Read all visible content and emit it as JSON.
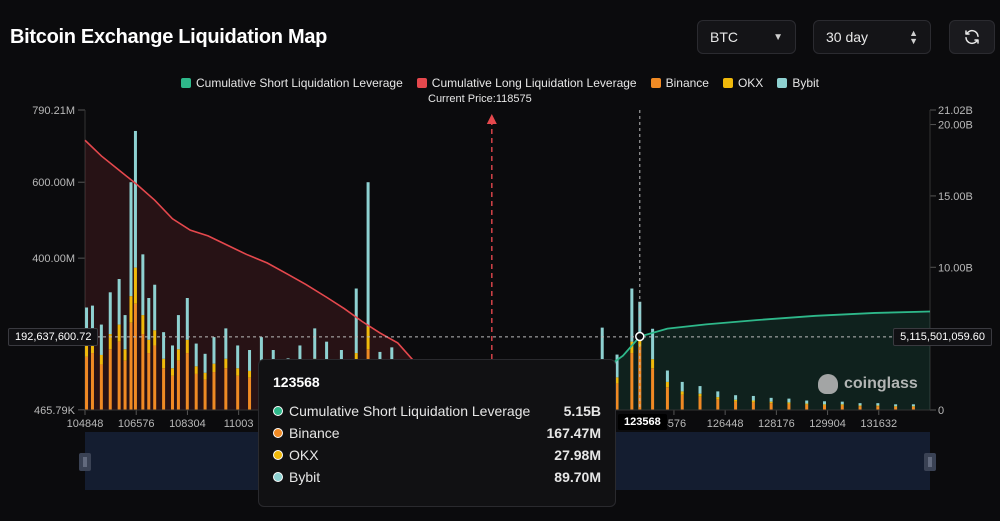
{
  "header": {
    "title": "Bitcoin Exchange Liquidation Map"
  },
  "controls": {
    "coin": "BTC",
    "range": "30 day",
    "refresh_icon": "refresh-icon"
  },
  "colors": {
    "short": "#2eb88a",
    "long": "#e5484d",
    "binance": "#f08a24",
    "okx": "#f0b90b",
    "bybit": "#8ed1d1",
    "price_line": "#e5484d"
  },
  "legend": [
    {
      "label": "Cumulative Short Liquidation Leverage",
      "color": "#2eb88a"
    },
    {
      "label": "Cumulative Long Liquidation Leverage",
      "color": "#e5484d"
    },
    {
      "label": "Binance",
      "color": "#f08a24"
    },
    {
      "label": "OKX",
      "color": "#f0b90b"
    },
    {
      "label": "Bybit",
      "color": "#8ed1d1"
    }
  ],
  "current_price_label": "Current Price:118575",
  "crosshair": {
    "left_value": "192,637,600.72",
    "right_value": "5,115,501,059.60",
    "x_value": "123568"
  },
  "watermark": "coinglass",
  "tooltip": {
    "header": "123568",
    "rows": [
      {
        "label": "Cumulative Short Liquidation Leverage",
        "value": "5.15B",
        "color": "#2eb88a"
      },
      {
        "label": "Binance",
        "value": "167.47M",
        "color": "#f08a24"
      },
      {
        "label": "OKX",
        "value": "27.98M",
        "color": "#f0b90b"
      },
      {
        "label": "Bybit",
        "value": "89.70M",
        "color": "#8ed1d1"
      }
    ]
  },
  "chart_data": {
    "type": "bar",
    "current_price": 118575,
    "x_range": [
      104848,
      133360
    ],
    "x_ticks": [
      "104848",
      "106576",
      "108304",
      "11003",
      "4576",
      "126448",
      "128176",
      "129904",
      "131632"
    ],
    "y_left_ticks": [
      "790.21M",
      "600.00M",
      "400.00M",
      "465.79K"
    ],
    "y_left_range": [
      0,
      790.21
    ],
    "y_right_ticks": [
      "21.02B",
      "20.00B",
      "15.00B",
      "10.00B",
      "0"
    ],
    "y_right_range": [
      0,
      21.02
    ],
    "long_cumulative": [
      [
        104848,
        18.9
      ],
      [
        105400,
        17.8
      ],
      [
        106000,
        16.8
      ],
      [
        106600,
        15.8
      ],
      [
        107200,
        14.7
      ],
      [
        107800,
        13.4
      ],
      [
        108400,
        12.6
      ],
      [
        109000,
        12.2
      ],
      [
        109700,
        11.5
      ],
      [
        110300,
        10.9
      ],
      [
        111000,
        10.3
      ],
      [
        111700,
        9.5
      ],
      [
        112300,
        8.8
      ],
      [
        113000,
        7.9
      ],
      [
        113600,
        7.1
      ],
      [
        114200,
        6.2
      ],
      [
        114800,
        5.4
      ],
      [
        115400,
        4.7
      ],
      [
        116000,
        3.3
      ],
      [
        116700,
        1.9
      ],
      [
        117400,
        1.2
      ],
      [
        118000,
        0.4
      ],
      [
        118575,
        0
      ]
    ],
    "short_cumulative": [
      [
        118575,
        0
      ],
      [
        119400,
        0.3
      ],
      [
        120300,
        0.8
      ],
      [
        121200,
        1.4
      ],
      [
        122200,
        2.6
      ],
      [
        123000,
        3.8
      ],
      [
        123568,
        5.15
      ],
      [
        124500,
        5.7
      ],
      [
        125800,
        6.0
      ],
      [
        127500,
        6.3
      ],
      [
        129500,
        6.6
      ],
      [
        131500,
        6.8
      ],
      [
        133360,
        6.9
      ]
    ],
    "series": [
      {
        "name": "Binance",
        "x": [
          104900,
          105100,
          105400,
          105700,
          106000,
          106200,
          106400,
          106550,
          106800,
          107000,
          107200,
          107500,
          107800,
          108000,
          108300,
          108600,
          108900,
          109200,
          109600,
          110000,
          110400,
          110800,
          111200,
          111700,
          112100,
          112600,
          113000,
          113500,
          114000,
          114400,
          114800,
          115200,
          115600,
          116000,
          116500,
          117000,
          117500,
          118000,
          118800,
          119600,
          120400,
          121200,
          121700,
          122300,
          122800,
          123300,
          123568,
          124000,
          124500,
          125000,
          125600,
          126200,
          126800,
          127400,
          128000,
          128600,
          129200,
          129800,
          130400,
          131000,
          131600,
          132200,
          132800
        ],
        "values": [
          140,
          150,
          120,
          160,
          180,
          130,
          230,
          280,
          200,
          150,
          170,
          110,
          90,
          130,
          150,
          95,
          80,
          100,
          110,
          90,
          85,
          100,
          85,
          70,
          90,
          110,
          95,
          80,
          120,
          160,
          75,
          85,
          60,
          70,
          55,
          65,
          40,
          50,
          55,
          45,
          40,
          30,
          50,
          95,
          70,
          150,
          167.47,
          110,
          60,
          40,
          35,
          28,
          22,
          20,
          18,
          16,
          14,
          12,
          12,
          10,
          10,
          8,
          8
        ]
      },
      {
        "name": "OKX",
        "x": [
          104900,
          105100,
          105400,
          105700,
          106000,
          106200,
          106400,
          106550,
          106800,
          107000,
          107200,
          107500,
          107800,
          108000,
          108300,
          108600,
          108900,
          109200,
          109600,
          110000,
          110400,
          110800,
          111200,
          111700,
          112100,
          112600,
          113000,
          113500,
          114000,
          114400,
          114800,
          115200,
          115600,
          116000,
          116500,
          117000,
          117500,
          118000,
          118800,
          119600,
          120400,
          121200,
          121700,
          122300,
          122800,
          123300,
          123568,
          124000,
          124500,
          125000,
          125600,
          126200,
          126800,
          127400,
          128000,
          128600,
          129200,
          129800,
          130400,
          131000,
          131600,
          132200,
          132800
        ],
        "values": [
          30,
          35,
          25,
          40,
          45,
          30,
          70,
          95,
          50,
          35,
          40,
          25,
          20,
          30,
          35,
          20,
          18,
          22,
          25,
          20,
          18,
          22,
          18,
          16,
          20,
          25,
          20,
          18,
          30,
          60,
          18,
          20,
          14,
          16,
          12,
          14,
          9,
          12,
          12,
          10,
          9,
          7,
          12,
          22,
          16,
          30,
          27.98,
          24,
          14,
          9,
          8,
          6,
          5,
          5,
          4,
          4,
          3,
          3,
          3,
          2,
          2,
          2,
          2
        ]
      },
      {
        "name": "Bybit",
        "x": [
          104900,
          105100,
          105400,
          105700,
          106000,
          106200,
          106400,
          106550,
          106800,
          107000,
          107200,
          107500,
          107800,
          108000,
          108300,
          108600,
          108900,
          109200,
          109600,
          110000,
          110400,
          110800,
          111200,
          111700,
          112100,
          112600,
          113000,
          113500,
          114000,
          114400,
          114800,
          115200,
          115600,
          116000,
          116500,
          117000,
          117500,
          118000,
          118800,
          119600,
          120400,
          121200,
          121700,
          122300,
          122800,
          123300,
          123568,
          124000,
          124500,
          125000,
          125600,
          126200,
          126800,
          127400,
          128000,
          128600,
          129200,
          129800,
          130400,
          131000,
          131600,
          132200,
          132800
        ],
        "values": [
          100,
          90,
          80,
          110,
          120,
          90,
          300,
          360,
          160,
          110,
          120,
          70,
          60,
          90,
          110,
          60,
          50,
          70,
          80,
          60,
          55,
          70,
          55,
          50,
          60,
          80,
          65,
          60,
          170,
          380,
          60,
          60,
          40,
          45,
          35,
          45,
          25,
          35,
          60,
          40,
          30,
          25,
          50,
          100,
          60,
          140,
          89.7,
          80,
          30,
          25,
          20,
          15,
          12,
          12,
          10,
          10,
          8,
          8,
          7,
          6,
          6,
          5,
          5
        ]
      }
    ]
  }
}
